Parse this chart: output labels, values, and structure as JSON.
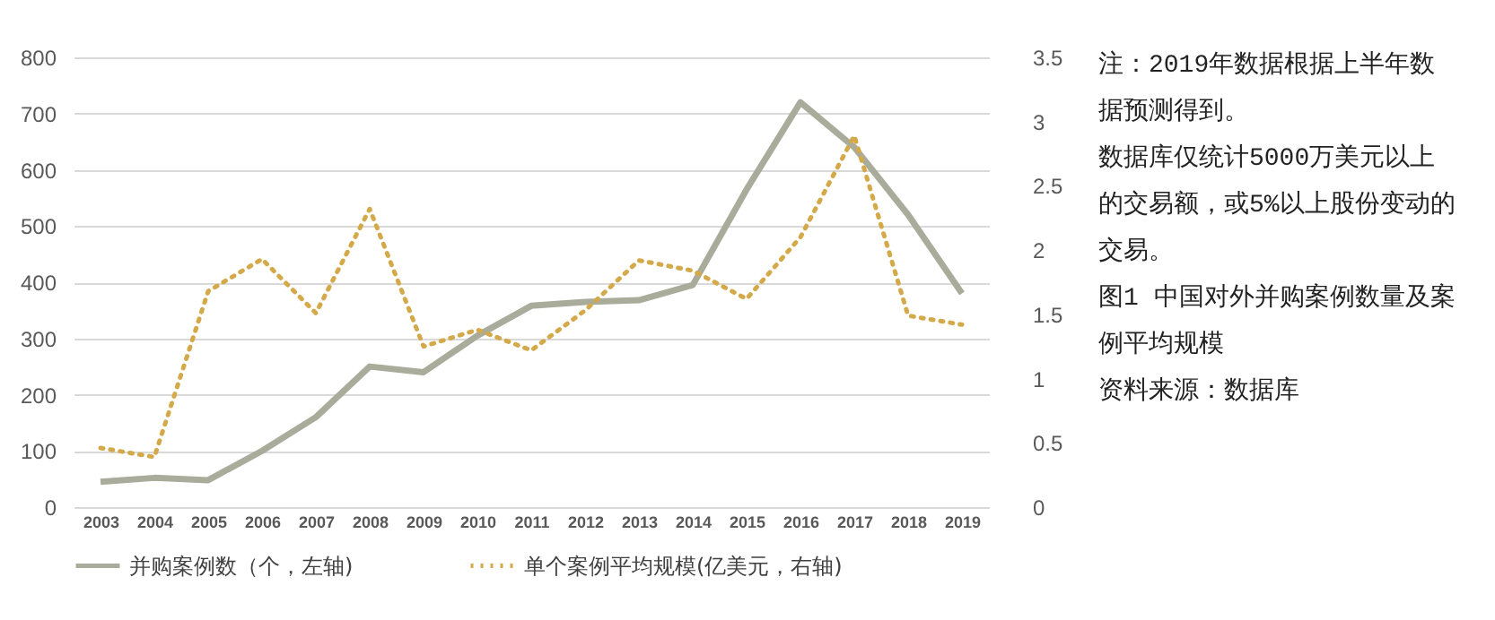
{
  "chart_data": {
    "type": "line",
    "title": "图1  中国对外并购案例数量及案例平均规模",
    "annotations": [
      "注：2019年数据根据上半年数据预测得到。",
      "数据库仅统计5000万美元以上的交易额，或5%以上股份变动的交易。",
      "资料来源：数据库"
    ],
    "categories": [
      "2003",
      "2004",
      "2005",
      "2006",
      "2007",
      "2008",
      "2009",
      "2010",
      "2011",
      "2012",
      "2013",
      "2014",
      "2015",
      "2016",
      "2017",
      "2018",
      "2019"
    ],
    "series": [
      {
        "name": "并购案例数（个，左轴)",
        "color": "#a9ac9b",
        "line_style": "solid",
        "values": [
          45,
          52,
          48,
          100,
          160,
          250,
          240,
          305,
          358,
          365,
          368,
          395,
          565,
          720,
          640,
          520,
          380
        ]
      },
      {
        "name": "单个案例平均规模(亿美元，右轴)",
        "color": "#d4a94a",
        "line_style": "dotted",
        "axis": "y2",
        "values": [
          0.46,
          0.39,
          1.68,
          1.93,
          1.51,
          2.32,
          1.25,
          1.38,
          1.22,
          1.53,
          1.92,
          1.84,
          1.62,
          2.1,
          2.89,
          1.49,
          1.42
        ]
      }
    ],
    "ylim": [
      0,
      800
    ],
    "yticks": [
      0,
      100,
      200,
      300,
      400,
      500,
      600,
      700,
      800
    ],
    "y2lim": [
      0,
      3.5
    ],
    "y2ticks": [
      0,
      0.5,
      1,
      1.5,
      2,
      2.5,
      3,
      3.5
    ],
    "grid": "y",
    "legend": "bottom"
  }
}
